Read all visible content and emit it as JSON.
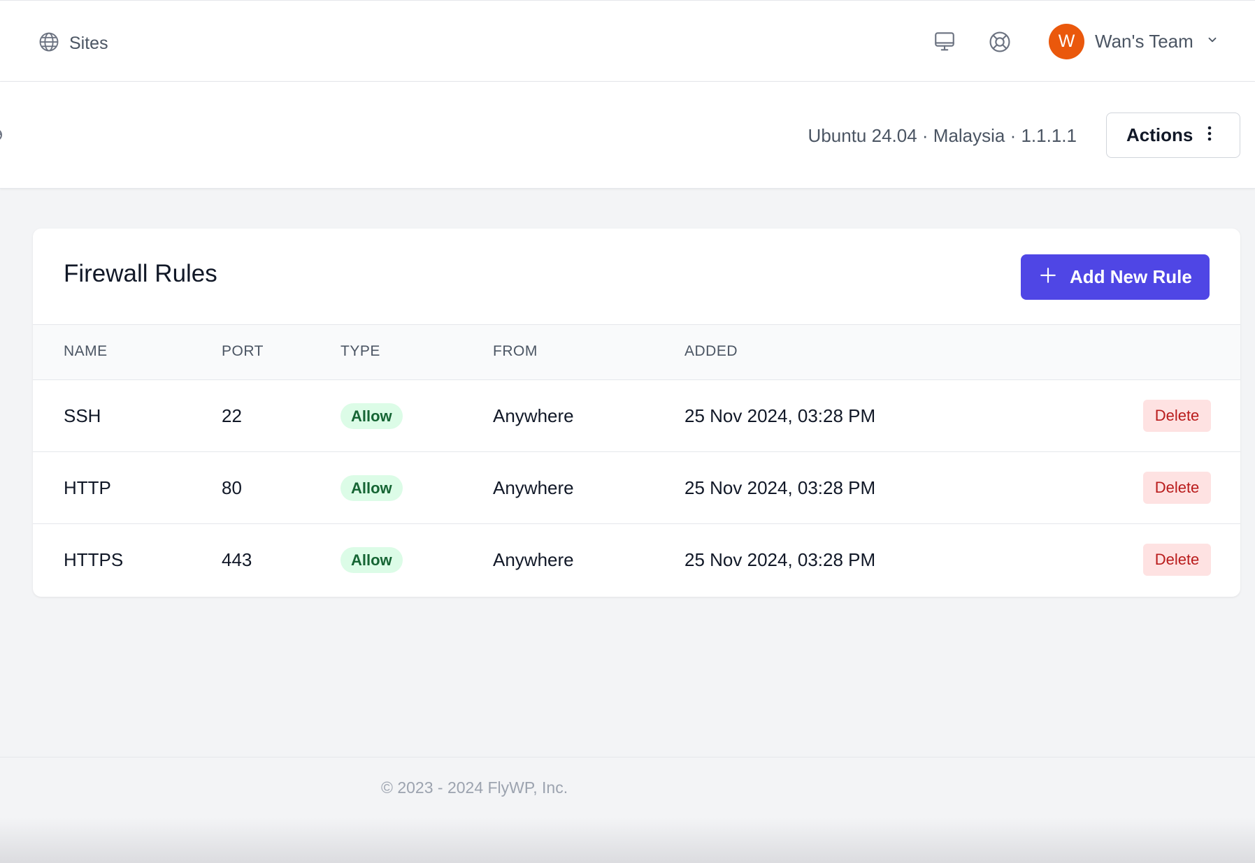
{
  "topbar": {
    "sites_label": "Sites",
    "team_initial": "W",
    "team_name": "Wan's Team"
  },
  "server": {
    "meta": "Ubuntu 24.04 · Malaysia · 1.1.1.1",
    "actions_label": "Actions"
  },
  "firewall": {
    "title": "Firewall Rules",
    "add_label": "Add New Rule",
    "columns": [
      "NAME",
      "PORT",
      "TYPE",
      "FROM",
      "ADDED"
    ],
    "rows": [
      {
        "name": "SSH",
        "port": "22",
        "type": "Allow",
        "from": "Anywhere",
        "added": "25 Nov 2024, 03:28 PM",
        "action": "Delete"
      },
      {
        "name": "HTTP",
        "port": "80",
        "type": "Allow",
        "from": "Anywhere",
        "added": "25 Nov 2024, 03:28 PM",
        "action": "Delete"
      },
      {
        "name": "HTTPS",
        "port": "443",
        "type": "Allow",
        "from": "Anywhere",
        "added": "25 Nov 2024, 03:28 PM",
        "action": "Delete"
      }
    ]
  },
  "footer": {
    "copyright": "© 2023 - 2024 FlyWP, Inc."
  },
  "icons": [
    "globe-icon",
    "monitor-icon",
    "lifebuoy-icon",
    "chevron-down-icon",
    "refresh-icon",
    "kebab-menu-icon",
    "plus-icon"
  ],
  "colors": {
    "accent": "#4f46e5",
    "avatar": "#ea580c",
    "allow_bg": "#dcfce7",
    "allow_text": "#166534",
    "delete_bg": "#fee2e2",
    "delete_text": "#b91c1c"
  }
}
